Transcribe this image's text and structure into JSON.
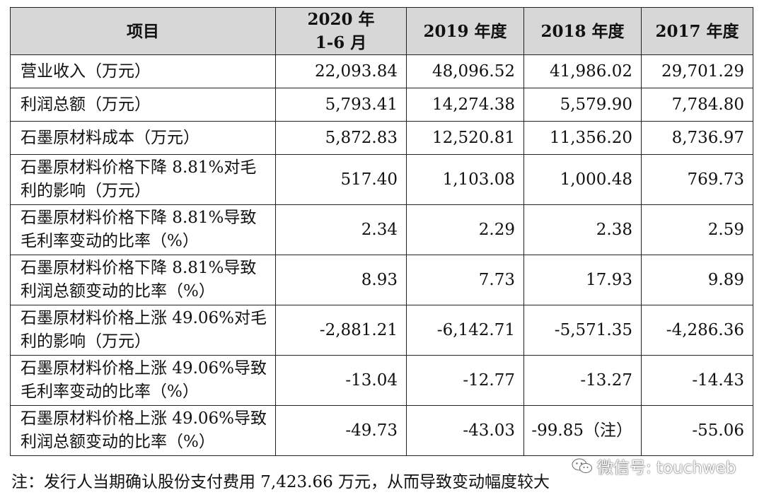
{
  "table": {
    "headers": {
      "item": "项目",
      "col1_line1": "2020 年",
      "col1_line2": "1-6 月",
      "col2": "2019 年度",
      "col3": "2018 年度",
      "col4": "2017 年度"
    },
    "rows": [
      {
        "label": "营业收入（万元）",
        "values": [
          "22,093.84",
          "48,096.52",
          "41,986.02",
          "29,701.29"
        ]
      },
      {
        "label": "利润总额（万元）",
        "values": [
          "5,793.41",
          "14,274.38",
          "5,579.90",
          "7,784.80"
        ]
      },
      {
        "label": "石墨原材料成本（万元）",
        "values": [
          "5,872.83",
          "12,520.81",
          "11,356.20",
          "8,736.97"
        ]
      },
      {
        "label": "石墨原材料价格下降 8.81%对毛利的影响（万元）",
        "values": [
          "517.40",
          "1,103.08",
          "1,000.48",
          "769.73"
        ]
      },
      {
        "label": "石墨原材料价格下降 8.81%导致毛利率变动的比率（%）",
        "values": [
          "2.34",
          "2.29",
          "2.38",
          "2.59"
        ]
      },
      {
        "label": "石墨原材料价格下降 8.81%导致利润总额变动的比率（%）",
        "values": [
          "8.93",
          "7.73",
          "17.93",
          "9.89"
        ]
      },
      {
        "label": "石墨原材料价格上涨 49.06%对毛利的影响（万元）",
        "values": [
          "-2,881.21",
          "-6,142.71",
          "-5,571.35",
          "-4,286.36"
        ]
      },
      {
        "label": "石墨原材料价格上涨 49.06%导致毛利率变动的比率（%）",
        "values": [
          "-13.04",
          "-12.77",
          "-13.27",
          "-14.43"
        ]
      },
      {
        "label": "石墨原材料价格上涨 49.06%导致利润总额变动的比率（%）",
        "values": [
          "-49.73",
          "-43.03",
          "-99.85（注）",
          "-55.06"
        ]
      }
    ]
  },
  "note": "注：发行人当期确认股份支付费用 7,423.66 万元，从而导致变动幅度较大",
  "watermark": {
    "text": "微信号: touchweb",
    "icon": "wechat-icon"
  }
}
